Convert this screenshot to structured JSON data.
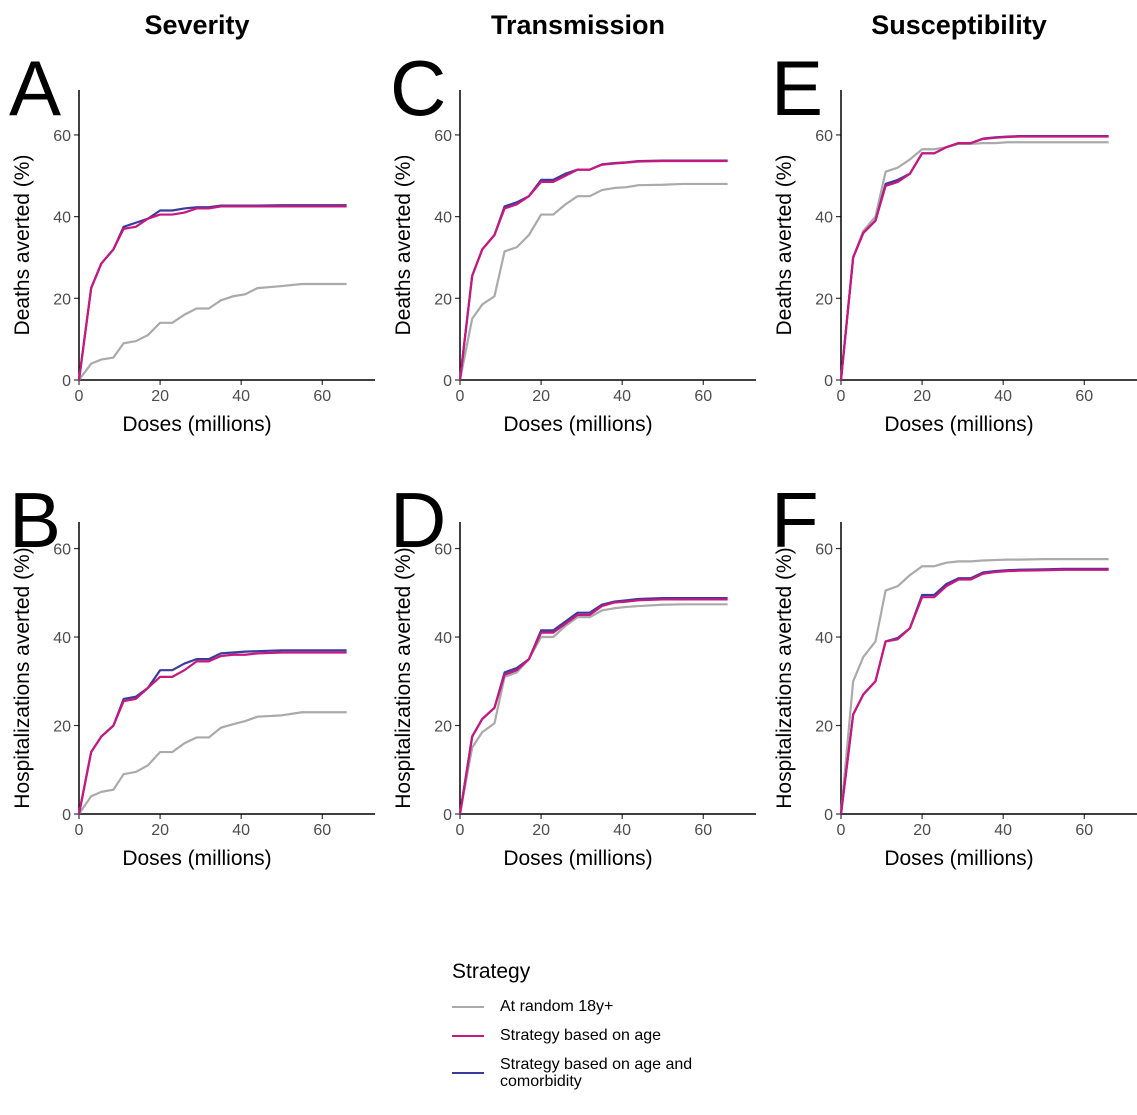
{
  "legend_title": "Strategy",
  "chart_data": [
    {
      "type": "line",
      "title": "Severity",
      "panel_label": "A",
      "x_label": "Doses (millions)",
      "y_label": "Deaths averted (%)",
      "x": [
        0,
        3,
        5.5,
        8.5,
        11,
        14,
        17,
        20,
        23,
        26,
        29,
        32,
        35,
        38,
        41,
        44,
        50,
        55,
        60,
        66
      ],
      "xlim": [
        0,
        73
      ],
      "ylim": [
        0,
        71
      ],
      "xticks": [
        0,
        20,
        40,
        60
      ],
      "yticks": [
        0,
        20,
        40,
        60
      ],
      "series": [
        {
          "name": "At random 18y+",
          "color": "#aaaaaa",
          "values": [
            0,
            4,
            5,
            5.5,
            9,
            9.5,
            11,
            14,
            14,
            16,
            17.5,
            17.5,
            19.5,
            20.5,
            21,
            22.5,
            23,
            23.5,
            23.5,
            23.5
          ]
        },
        {
          "name": "Strategy based on age and comorbidity",
          "color": "#3b3b9c",
          "values": [
            0,
            22.5,
            28.5,
            32,
            37.5,
            38.5,
            39.5,
            41.5,
            41.5,
            42,
            42.3,
            42.3,
            42.7,
            42.7,
            42.7,
            42.7,
            42.8,
            42.8,
            42.8,
            42.8
          ]
        },
        {
          "name": "Strategy based on age",
          "color": "#c8177f",
          "values": [
            0,
            22.5,
            28.5,
            32,
            37,
            37.5,
            39.5,
            40.5,
            40.5,
            41,
            42,
            42,
            42.5,
            42.5,
            42.5,
            42.5,
            42.5,
            42.5,
            42.5,
            42.5
          ]
        }
      ]
    },
    {
      "type": "line",
      "panel_label": "B",
      "x_label": "Doses (millions)",
      "y_label": "Hospitalizations averted (%)",
      "x": [
        0,
        3,
        5.5,
        8.5,
        11,
        14,
        17,
        20,
        23,
        26,
        29,
        32,
        35,
        38,
        41,
        44,
        50,
        55,
        60,
        66
      ],
      "xlim": [
        0,
        73
      ],
      "ylim": [
        0,
        66
      ],
      "xticks": [
        0,
        20,
        40,
        60
      ],
      "yticks": [
        0,
        20,
        40,
        60
      ],
      "series": [
        {
          "name": "At random 18y+",
          "color": "#aaaaaa",
          "values": [
            0,
            4,
            5,
            5.5,
            9,
            9.5,
            11,
            14,
            14,
            16,
            17.3,
            17.3,
            19.5,
            20.3,
            21,
            22,
            22.3,
            23,
            23,
            23
          ]
        },
        {
          "name": "Strategy based on age and comorbidity",
          "color": "#3b3b9c",
          "values": [
            0,
            14,
            17.5,
            20,
            26,
            26.5,
            28.5,
            32.5,
            32.5,
            34,
            35,
            35,
            36.3,
            36.5,
            36.7,
            36.8,
            37,
            37,
            37,
            37
          ]
        },
        {
          "name": "Strategy based on age",
          "color": "#c8177f",
          "values": [
            0,
            14,
            17.5,
            20,
            25.5,
            26,
            28.5,
            31,
            31,
            32.5,
            34.5,
            34.5,
            35.7,
            36,
            36,
            36.3,
            36.5,
            36.5,
            36.5,
            36.5
          ]
        }
      ]
    },
    {
      "type": "line",
      "title": "Transmission",
      "panel_label": "C",
      "x_label": "Doses (millions)",
      "y_label": "Deaths averted (%)",
      "x": [
        0,
        3,
        5.5,
        8.5,
        11,
        14,
        17,
        20,
        23,
        26,
        29,
        32,
        35,
        38,
        41,
        44,
        50,
        55,
        60,
        66
      ],
      "xlim": [
        0,
        73
      ],
      "ylim": [
        0,
        71
      ],
      "xticks": [
        0,
        20,
        40,
        60
      ],
      "yticks": [
        0,
        20,
        40,
        60
      ],
      "series": [
        {
          "name": "At random 18y+",
          "color": "#aaaaaa",
          "values": [
            0,
            15,
            18.5,
            20.5,
            31.5,
            32.5,
            35.5,
            40.5,
            40.5,
            43,
            45,
            45,
            46.5,
            47,
            47.2,
            47.7,
            47.8,
            48,
            48,
            48
          ]
        },
        {
          "name": "Strategy based on age and comorbidity",
          "color": "#3b3b9c",
          "values": [
            0,
            25.5,
            32,
            35.5,
            42.5,
            43.5,
            45,
            49,
            49,
            50.5,
            51.5,
            51.5,
            52.8,
            53.1,
            53.3,
            53.6,
            53.7,
            53.7,
            53.7,
            53.7
          ]
        },
        {
          "name": "Strategy based on age",
          "color": "#c8177f",
          "values": [
            0,
            25.5,
            32,
            35.5,
            42,
            43,
            45,
            48.5,
            48.5,
            50,
            51.5,
            51.5,
            52.7,
            53,
            53.2,
            53.5,
            53.6,
            53.6,
            53.6,
            53.6
          ]
        }
      ]
    },
    {
      "type": "line",
      "panel_label": "D",
      "x_label": "Doses (millions)",
      "y_label": "Hospitalizations averted (%)",
      "x": [
        0,
        3,
        5.5,
        8.5,
        11,
        14,
        17,
        20,
        23,
        26,
        29,
        32,
        35,
        38,
        41,
        44,
        50,
        55,
        60,
        66
      ],
      "xlim": [
        0,
        73
      ],
      "ylim": [
        0,
        66
      ],
      "xticks": [
        0,
        20,
        40,
        60
      ],
      "yticks": [
        0,
        20,
        40,
        60
      ],
      "series": [
        {
          "name": "At random 18y+",
          "color": "#aaaaaa",
          "values": [
            0,
            15,
            18.5,
            20.5,
            31,
            32,
            35,
            40,
            40,
            42.5,
            44.5,
            44.5,
            46,
            46.5,
            46.8,
            47,
            47.3,
            47.4,
            47.4,
            47.4
          ]
        },
        {
          "name": "Strategy based on age and comorbidity",
          "color": "#3b3b9c",
          "values": [
            0,
            17.5,
            21.5,
            24,
            32,
            33,
            35,
            41.5,
            41.5,
            43.5,
            45.5,
            45.5,
            47.3,
            48,
            48.3,
            48.6,
            48.8,
            48.8,
            48.8,
            48.8
          ]
        },
        {
          "name": "Strategy based on age",
          "color": "#c8177f",
          "values": [
            0,
            17.5,
            21.5,
            24,
            31.5,
            32.5,
            35,
            41,
            41,
            43,
            45,
            45,
            47,
            47.8,
            48,
            48.3,
            48.5,
            48.5,
            48.5,
            48.5
          ]
        }
      ]
    },
    {
      "type": "line",
      "title": "Susceptibility",
      "panel_label": "E",
      "x_label": "Doses (millions)",
      "y_label": "Deaths averted (%)",
      "x": [
        0,
        3,
        5.5,
        8.5,
        11,
        14,
        17,
        20,
        23,
        26,
        29,
        32,
        35,
        38,
        41,
        44,
        50,
        55,
        60,
        66
      ],
      "xlim": [
        0,
        73
      ],
      "ylim": [
        0,
        71
      ],
      "xticks": [
        0,
        20,
        40,
        60
      ],
      "yticks": [
        0,
        20,
        40,
        60
      ],
      "series": [
        {
          "name": "At random 18y+",
          "color": "#aaaaaa",
          "values": [
            0,
            30,
            36.5,
            40,
            51,
            52,
            54,
            56.5,
            56.5,
            57,
            57.8,
            57.8,
            58,
            58,
            58.2,
            58.2,
            58.2,
            58.2,
            58.2,
            58.2
          ]
        },
        {
          "name": "Strategy based on age and comorbidity",
          "color": "#3b3b9c",
          "values": [
            0,
            30,
            36,
            39,
            48,
            49,
            50.5,
            55.5,
            55.5,
            57,
            58,
            58,
            59.1,
            59.4,
            59.6,
            59.7,
            59.7,
            59.7,
            59.7,
            59.7
          ]
        },
        {
          "name": "Strategy based on age",
          "color": "#c8177f",
          "values": [
            0,
            30,
            36,
            39,
            47.5,
            48.5,
            50.5,
            55.5,
            55.5,
            57,
            58,
            58,
            59,
            59.3,
            59.5,
            59.6,
            59.6,
            59.6,
            59.6,
            59.6
          ]
        }
      ]
    },
    {
      "type": "line",
      "panel_label": "F",
      "x_label": "Doses (millions)",
      "y_label": "Hospitalizations averted (%)",
      "x": [
        0,
        3,
        5.5,
        8.5,
        11,
        14,
        17,
        20,
        23,
        26,
        29,
        32,
        35,
        38,
        41,
        44,
        50,
        55,
        60,
        66
      ],
      "xlim": [
        0,
        73
      ],
      "ylim": [
        0,
        66
      ],
      "xticks": [
        0,
        20,
        40,
        60
      ],
      "yticks": [
        0,
        20,
        40,
        60
      ],
      "series": [
        {
          "name": "At random 18y+",
          "color": "#aaaaaa",
          "values": [
            0,
            30,
            35.5,
            39,
            50.5,
            51.5,
            54,
            56,
            56,
            56.8,
            57.1,
            57.1,
            57.3,
            57.4,
            57.5,
            57.5,
            57.6,
            57.6,
            57.6,
            57.6
          ]
        },
        {
          "name": "Strategy based on age and comorbidity",
          "color": "#3b3b9c",
          "values": [
            0,
            22.5,
            27,
            30,
            39,
            39.8,
            42,
            49.5,
            49.5,
            52,
            53.3,
            53.3,
            54.6,
            54.9,
            55.1,
            55.2,
            55.3,
            55.4,
            55.4,
            55.4
          ]
        },
        {
          "name": "Strategy based on age",
          "color": "#c8177f",
          "values": [
            0,
            22.5,
            27,
            30,
            39,
            39.5,
            42,
            49,
            49,
            51.5,
            53,
            53,
            54.3,
            54.7,
            54.9,
            55,
            55.1,
            55.2,
            55.2,
            55.2
          ]
        }
      ]
    }
  ]
}
